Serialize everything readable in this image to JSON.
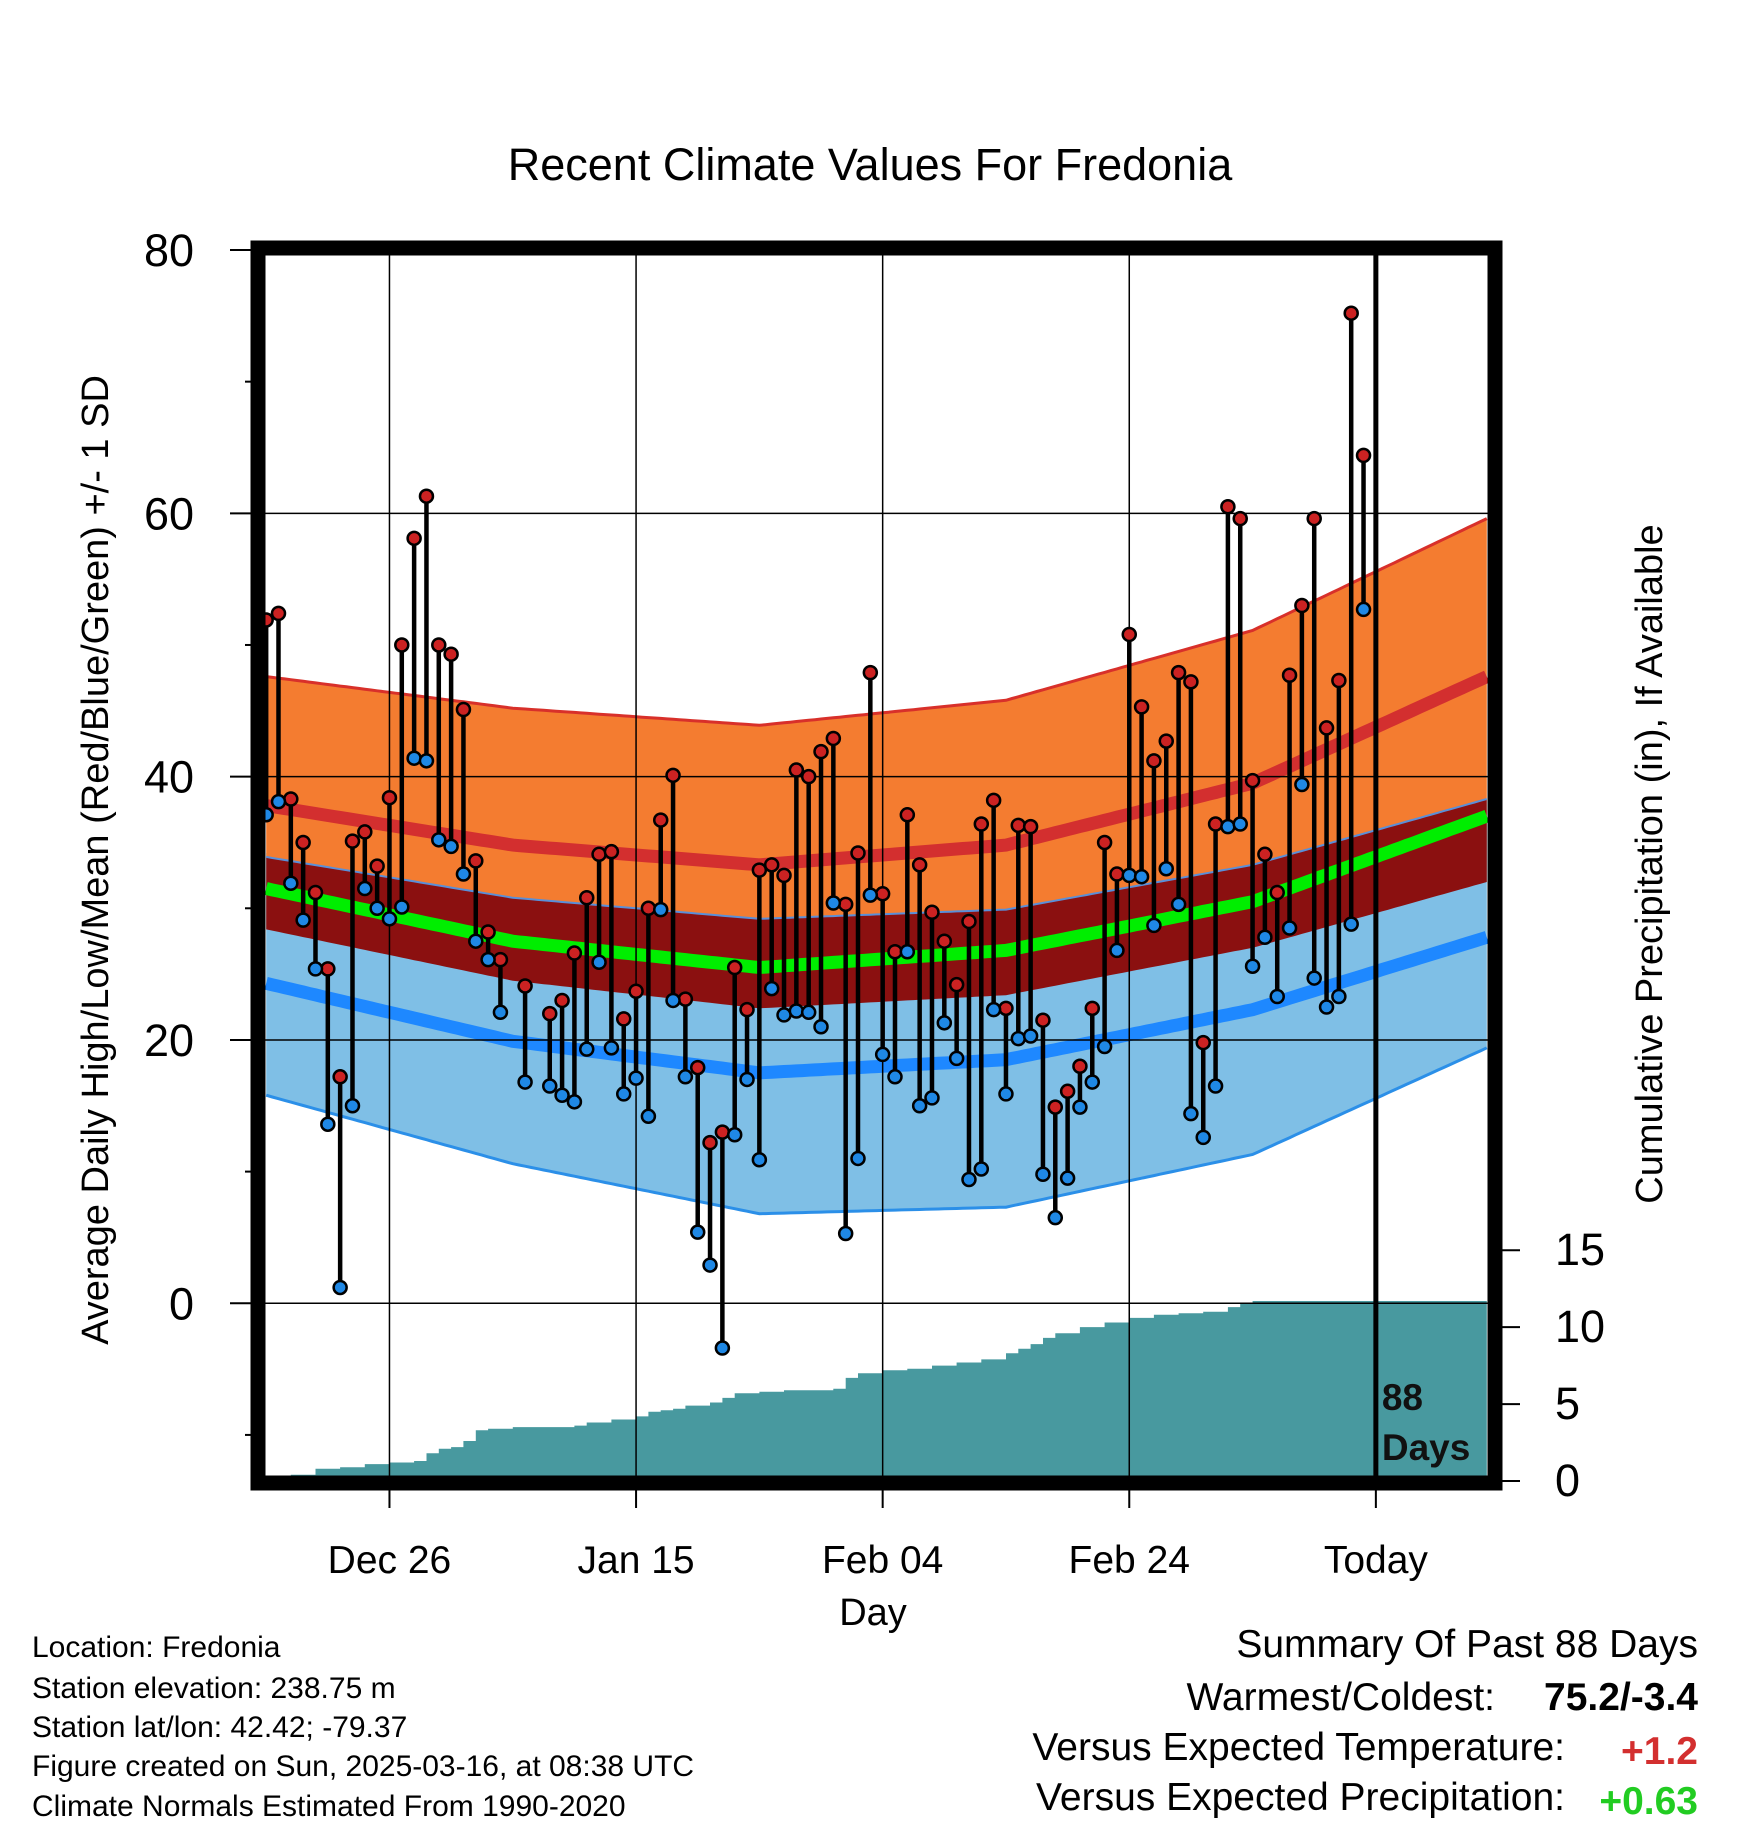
{
  "chart_data": {
    "type": "line",
    "title": "Recent Climate Values For Fredonia",
    "xlabel": "Day",
    "ylabel": "Average Daily High/Low/Mean (Red/Blue/Green) +/- 1 SD",
    "y2label": "Cumulative Precipitation (in), If Available",
    "x_ticks": [
      "Dec 26",
      "Jan 15",
      "Feb 04",
      "Feb 24",
      "Today"
    ],
    "x_tick_day": [
      10,
      30,
      50,
      70,
      90
    ],
    "xlim": [
      -0.5,
      99.5
    ],
    "ylim": [
      -13.5,
      80
    ],
    "y_ticks": [
      0,
      20,
      40,
      60,
      80
    ],
    "y2lim": [
      0,
      80
    ],
    "y2_ticks": [
      0,
      5,
      10,
      15
    ],
    "grid": true,
    "today_day": 90,
    "today_label": "88 Days",
    "normals": {
      "day": [
        0,
        20,
        40,
        60,
        80,
        99
      ],
      "high_sd_upper": [
        47.6,
        45.2,
        43.9,
        45.8,
        51.1,
        59.6
      ],
      "high_mean": [
        37.8,
        34.8,
        33.3,
        34.8,
        39.5,
        47.6
      ],
      "high_sd_lower": [
        33.9,
        30.8,
        29.2,
        29.9,
        33.3,
        38.3
      ],
      "mean": [
        31.5,
        27.5,
        25.5,
        26.8,
        30.5,
        37.0
      ],
      "low_sd_upper": [
        34.2,
        30.2,
        28.4,
        29.4,
        33.0,
        36.9
      ],
      "low_mean": [
        24.3,
        19.9,
        17.5,
        18.5,
        22.3,
        27.8
      ],
      "low_sd_lower": [
        15.8,
        10.6,
        6.8,
        7.3,
        11.3,
        19.4
      ],
      "band_lower": [
        28.4,
        24.5,
        22.4,
        23.4,
        27.0,
        32.0
      ]
    },
    "series": [
      {
        "name": "High",
        "color": "#cc2222",
        "values": [
          51.9,
          52.4,
          38.3,
          35.0,
          31.2,
          25.4,
          17.2,
          35.1,
          35.8,
          33.2,
          38.4,
          50.0,
          58.1,
          61.3,
          50.0,
          49.3,
          45.1,
          33.6,
          28.2,
          26.1,
          null,
          24.1,
          null,
          22.0,
          23.0,
          26.6,
          30.8,
          34.1,
          34.3,
          21.6,
          23.7,
          30.0,
          36.7,
          40.1,
          23.1,
          17.9,
          12.2,
          13.0,
          25.5,
          22.3,
          32.9,
          33.3,
          32.5,
          40.5,
          40.0,
          41.9,
          42.9,
          30.3,
          34.2,
          47.9,
          31.1,
          26.7,
          37.1,
          33.3,
          29.7,
          27.5,
          24.2,
          29.0,
          36.4,
          38.2,
          22.4,
          36.3,
          36.2,
          21.5,
          14.9,
          16.1,
          18.0,
          22.4,
          35.0,
          32.6,
          50.8,
          45.3,
          41.2,
          42.7,
          47.9,
          47.2,
          19.8,
          36.4,
          60.5,
          59.6,
          39.7,
          34.1,
          31.2,
          47.7,
          53.0,
          59.6,
          43.7,
          47.3,
          75.2,
          64.4
        ]
      },
      {
        "name": "Low",
        "color": "#1f88e5",
        "values": [
          37.1,
          38.1,
          31.9,
          29.1,
          25.4,
          13.6,
          1.2,
          15.0,
          31.5,
          30.0,
          29.2,
          30.1,
          41.4,
          41.2,
          35.2,
          34.7,
          32.6,
          27.5,
          26.1,
          22.1,
          null,
          16.8,
          null,
          16.5,
          15.8,
          15.3,
          19.3,
          25.9,
          19.4,
          15.9,
          17.1,
          14.2,
          29.9,
          23.0,
          17.2,
          5.4,
          2.9,
          -3.4,
          12.8,
          17.0,
          10.9,
          23.9,
          21.9,
          22.2,
          22.1,
          21.0,
          30.4,
          5.3,
          11.0,
          31.0,
          18.9,
          17.2,
          26.7,
          15.0,
          15.6,
          21.3,
          18.6,
          9.4,
          10.2,
          22.3,
          15.9,
          20.1,
          20.3,
          9.8,
          6.5,
          9.5,
          14.9,
          16.8,
          19.5,
          26.8,
          32.5,
          32.4,
          28.7,
          33.0,
          30.3,
          14.4,
          12.6,
          16.5,
          36.2,
          36.4,
          25.6,
          27.8,
          23.3,
          28.5,
          39.4,
          24.7,
          22.5,
          23.3,
          28.8,
          52.7
        ]
      }
    ],
    "precip_cumulative": {
      "day": [
        0,
        2,
        4,
        6,
        8,
        10,
        12,
        13,
        14,
        15,
        16,
        17,
        18,
        20,
        24,
        25,
        26,
        28,
        30,
        31,
        32,
        33,
        34,
        36,
        37,
        38,
        40,
        42,
        46,
        47,
        48,
        50,
        52,
        54,
        56,
        58,
        60,
        61,
        62,
        63,
        64,
        66,
        68,
        70,
        72,
        74,
        76,
        78,
        79,
        80,
        90,
        99
      ],
      "value": [
        0.0,
        0.4,
        0.8,
        0.9,
        1.1,
        1.2,
        1.3,
        1.8,
        2.1,
        2.2,
        2.6,
        3.3,
        3.4,
        3.5,
        3.5,
        3.6,
        3.8,
        4.0,
        4.2,
        4.5,
        4.6,
        4.7,
        4.9,
        5.1,
        5.4,
        5.7,
        5.8,
        5.9,
        6.0,
        6.7,
        7.0,
        7.2,
        7.3,
        7.5,
        7.7,
        7.9,
        8.3,
        8.6,
        8.9,
        9.3,
        9.6,
        10.0,
        10.3,
        10.6,
        10.8,
        10.9,
        11.0,
        11.3,
        11.6,
        11.7,
        11.7,
        11.7
      ]
    }
  },
  "footer": {
    "location": "Location: Fredonia",
    "elevation": "Station elevation: 238.75 m",
    "latlon": "Station lat/lon: 42.42; -79.37",
    "created": "Figure created on Sun, 2025-03-16, at 08:38 UTC",
    "normals": "Climate Normals Estimated From 1990-2020"
  },
  "summary": {
    "heading": "Summary Of Past 88 Days",
    "warmest_label": "Warmest/Coldest:",
    "warmest_value": "75.2/-3.4",
    "temp_label": "Versus Expected Temperature:",
    "temp_value": "+1.2",
    "precip_label": "Versus Expected Precipitation:",
    "precip_value": "+0.63"
  },
  "colors": {
    "high_band": "#f47c30",
    "high_line": "#d32f2f",
    "mean_band": "#8b1010",
    "mean_line": "#00ee00",
    "low_band": "#7fbfe6",
    "low_line": "#1e88ff",
    "precip": "#48999f",
    "text_red": "#d32f2f",
    "text_green": "#22cc22"
  }
}
